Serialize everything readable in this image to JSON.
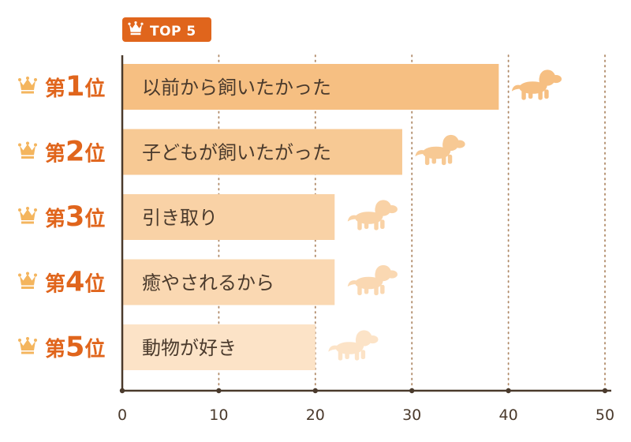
{
  "badge": {
    "label": "TOP 5",
    "icon": "crown-icon",
    "color": "#e0651c"
  },
  "rank_color": "#e0651c",
  "crown_color": "#f4b55e",
  "chart_data": {
    "type": "bar",
    "orientation": "horizontal",
    "categories": [
      "以前から飼いたかった",
      "子どもが飼いたがった",
      "引き取り",
      "癒やされるから",
      "動物が好き"
    ],
    "ranks": [
      {
        "prefix": "第",
        "number": "1",
        "suffix": "位"
      },
      {
        "prefix": "第",
        "number": "2",
        "suffix": "位"
      },
      {
        "prefix": "第",
        "number": "3",
        "suffix": "位"
      },
      {
        "prefix": "第",
        "number": "4",
        "suffix": "位"
      },
      {
        "prefix": "第",
        "number": "5",
        "suffix": "位"
      }
    ],
    "values": [
      39,
      29,
      22,
      22,
      20
    ],
    "bar_colors": [
      "#f6bf82",
      "#f7c994",
      "#f9d2a6",
      "#fad8b2",
      "#fce3c7"
    ],
    "dog_icon": "dog-icon",
    "xlim": [
      0,
      50
    ],
    "xticks": [
      0,
      10,
      20,
      30,
      40,
      50
    ],
    "grid": true,
    "title": "",
    "xlabel": "",
    "ylabel": ""
  }
}
